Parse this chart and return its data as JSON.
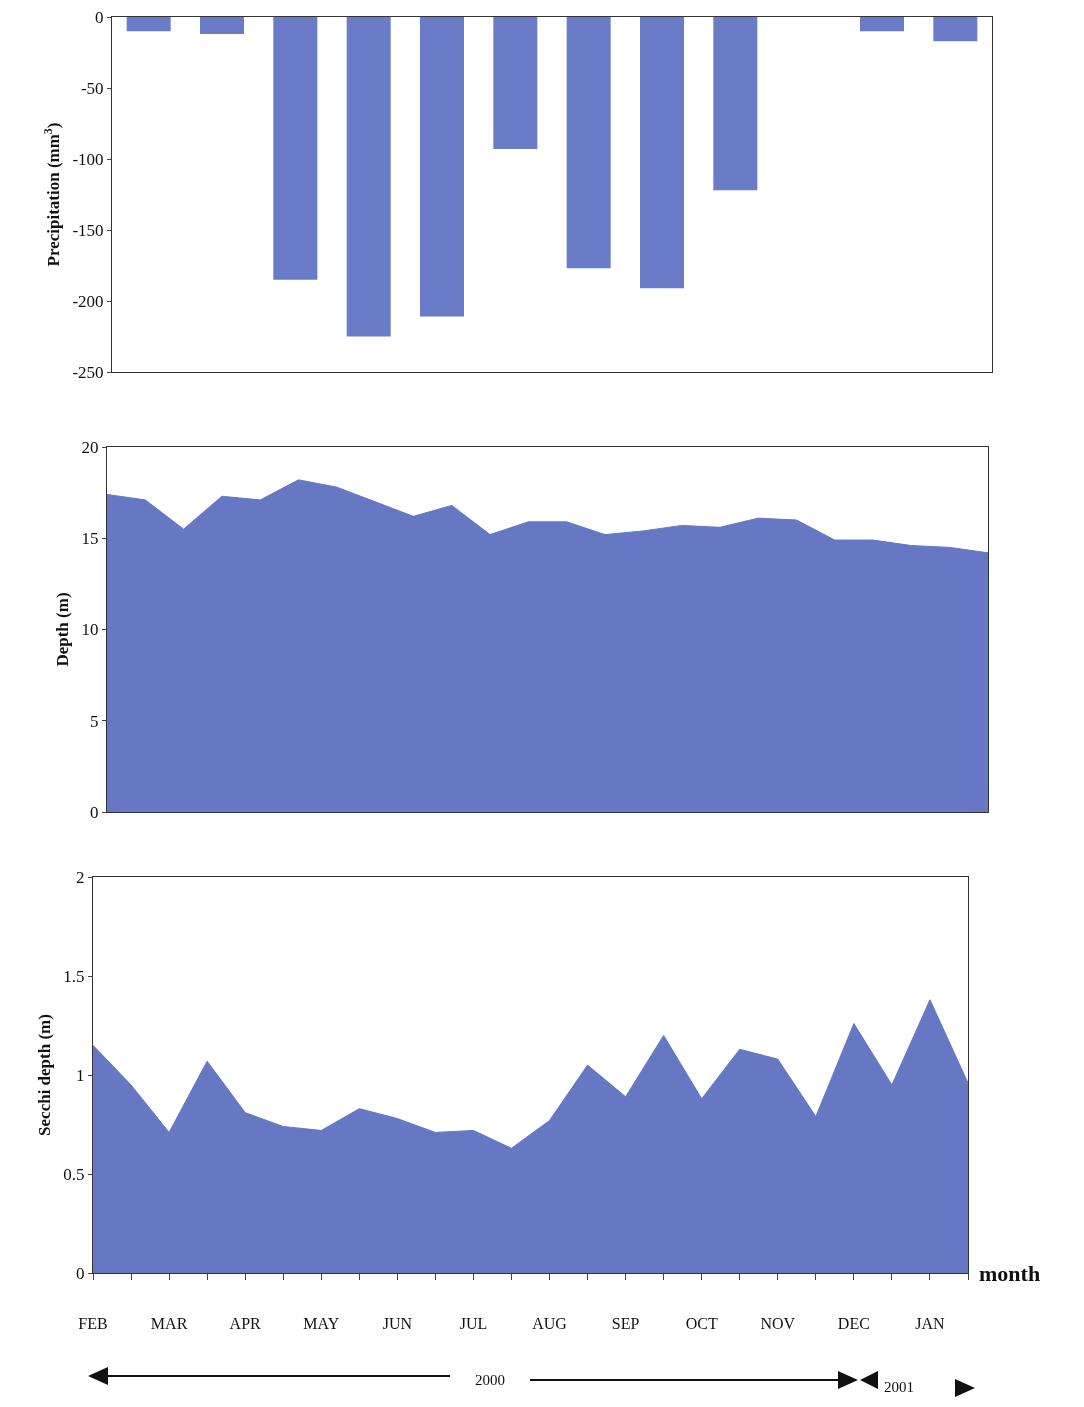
{
  "chart_data": [
    {
      "type": "bar",
      "ylabel": "Precipitation (mm$^{3}$)",
      "categories": [
        null,
        null,
        null,
        null,
        null,
        null,
        null,
        null,
        null,
        null,
        null,
        null
      ],
      "values": [
        -10,
        -12,
        -185,
        -225,
        -211,
        -93,
        -177,
        -191,
        -122,
        null,
        -10,
        -17
      ],
      "color": "#6a7bc8",
      "ylim": [
        -250,
        0
      ],
      "yticks": [
        -250,
        -200,
        -150,
        -100,
        -50,
        0
      ],
      "grid": false,
      "legend": false,
      "tick_labels": "y"
    },
    {
      "type": "area",
      "ylabel": "Depth (m)",
      "categories": [
        null,
        null,
        null,
        null,
        null,
        null,
        null,
        null,
        null,
        null,
        null,
        null,
        null,
        null,
        null,
        null,
        null,
        null,
        null,
        null,
        null,
        null,
        null,
        null
      ],
      "values": [
        17.4,
        17.1,
        15.5,
        17.3,
        17.1,
        18.2,
        17.8,
        17.0,
        16.2,
        16.8,
        15.2,
        15.9,
        15.9,
        15.2,
        15.4,
        15.7,
        15.6,
        16.1,
        16.0,
        14.9,
        14.9,
        14.6,
        14.5,
        14.2
      ],
      "color": "#6677c4",
      "ylim": [
        0,
        20
      ],
      "yticks": [
        0,
        5,
        10,
        15,
        20
      ],
      "grid": false,
      "legend": false,
      "tick_labels": "y"
    },
    {
      "type": "area",
      "ylabel": "Secchi depth (m)",
      "xlabel": "month",
      "categories": [
        "FEB",
        null,
        "MAR",
        null,
        "APR",
        null,
        "MAY",
        null,
        "JUN",
        null,
        "JUL",
        null,
        "AUG",
        null,
        "SEP",
        null,
        "OCT",
        null,
        "NOV",
        null,
        "DEC",
        null,
        "JAN",
        null
      ],
      "values": [
        1.15,
        0.95,
        0.71,
        1.07,
        0.81,
        0.74,
        0.72,
        0.83,
        0.78,
        0.71,
        0.72,
        0.63,
        0.77,
        1.05,
        0.89,
        1.2,
        0.88,
        1.13,
        1.08,
        0.79,
        1.26,
        0.95,
        1.38,
        0.96
      ],
      "color": "#6677c4",
      "ylim": [
        0,
        2
      ],
      "yticks": [
        0,
        0.5,
        1,
        1.5,
        2
      ],
      "grid": false,
      "legend": false,
      "annotations": [
        "2000",
        "2001"
      ]
    }
  ]
}
